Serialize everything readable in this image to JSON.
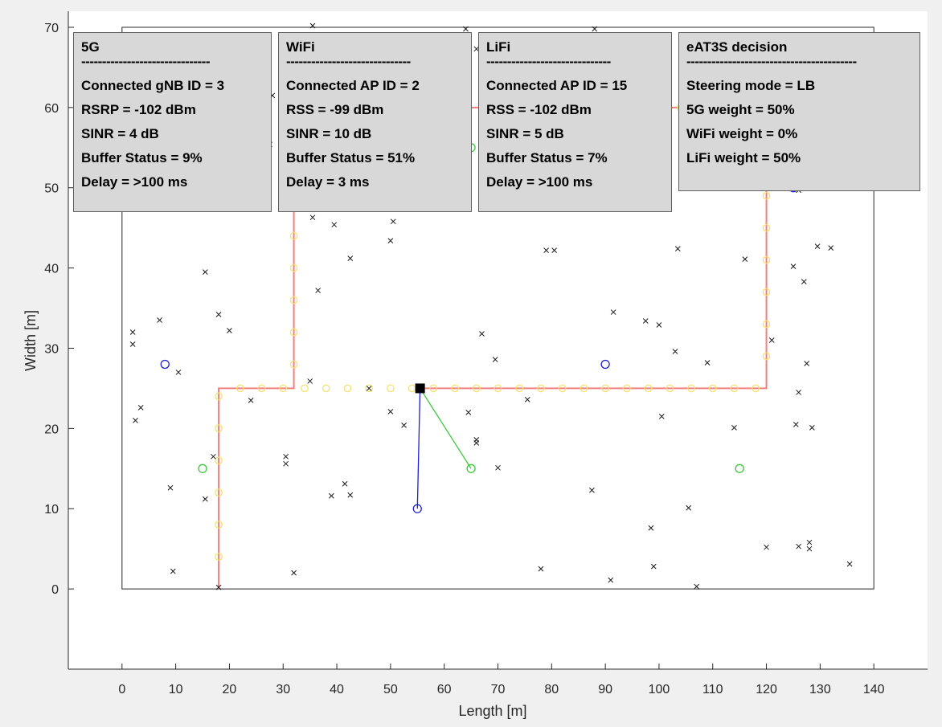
{
  "info_panels": [
    {
      "id": "5g",
      "title": "5G",
      "separator": "-------------------------------",
      "lines": [
        "Connected gNB ID = 3",
        "RSRP = -102 dBm",
        "SINR = 4 dB",
        "Buffer Status = 9%",
        "Delay = >100 ms"
      ]
    },
    {
      "id": "wifi",
      "title": "WiFi",
      "separator": "------------------------------",
      "lines": [
        "Connected AP ID = 2",
        "RSS = -99 dBm",
        "SINR = 10 dB",
        "Buffer Status = 51%",
        "Delay = 3 ms"
      ]
    },
    {
      "id": "lifi",
      "title": "LiFi",
      "separator": "------------------------------",
      "lines": [
        "Connected AP ID = 15",
        "RSS = -102 dBm",
        "SINR = 5 dB",
        "Buffer Status = 7%",
        "Delay = >100 ms"
      ]
    },
    {
      "id": "eat3s",
      "title": "eAT3S decision",
      "separator": "-----------------------------------------",
      "lines": [
        "Steering mode = LB",
        "5G weight = 50%",
        "WiFi weight = 0%",
        "LiFi weight = 50%"
      ]
    }
  ],
  "chart_data": {
    "type": "scatter",
    "title": "",
    "xlabel": "Length [m]",
    "ylabel": "Width [m]",
    "xlim": [
      -10,
      150
    ],
    "ylim": [
      -10,
      72
    ],
    "xticks": [
      0,
      10,
      20,
      30,
      40,
      50,
      60,
      70,
      80,
      90,
      100,
      110,
      120,
      130,
      140
    ],
    "yticks": [
      0,
      10,
      20,
      30,
      40,
      50,
      60,
      70
    ],
    "grid": false,
    "colors": {
      "axes": "#262626",
      "background": "#ffffff",
      "figure": "#f0f0f0",
      "crosses": "#1a1a1a",
      "gnb": "#1f1fd6",
      "wifi_ap": "#3cc83c",
      "lifi_ap": "#f5e26e",
      "path": "#f08080",
      "user": "#000000",
      "link_5g": "#1f1fd6",
      "link_wifi": "#3cc83c"
    },
    "room": {
      "x": [
        0,
        140
      ],
      "y": [
        0,
        70
      ]
    },
    "path": [
      [
        18,
        0
      ],
      [
        18,
        25
      ],
      [
        32,
        25
      ],
      [
        32,
        60
      ],
      [
        120,
        60
      ],
      [
        120,
        25
      ],
      [
        56,
        25
      ]
    ],
    "user_position": [
      55.5,
      25
    ],
    "links": [
      {
        "series": "5G",
        "to": [
          55,
          10
        ]
      },
      {
        "series": "WiFi",
        "to": [
          65,
          15
        ]
      }
    ],
    "series": [
      {
        "marker": "o",
        "values_xy": [
          [
            18,
            58
          ],
          [
            8,
            28
          ],
          [
            55,
            10
          ],
          [
            90,
            28
          ],
          [
            125,
            50
          ]
        ]
      },
      {
        "marker": "o",
        "values_xy": [
          [
            15,
            55
          ],
          [
            65,
            55
          ],
          [
            115,
            55
          ],
          [
            15,
            15
          ],
          [
            65,
            15
          ],
          [
            115,
            15
          ]
        ]
      },
      {
        "marker": "o",
        "values_xy": [
          [
            18,
            4
          ],
          [
            18,
            8
          ],
          [
            18,
            12
          ],
          [
            18,
            16
          ],
          [
            18,
            20
          ],
          [
            18,
            24
          ],
          [
            22,
            25
          ],
          [
            26,
            25
          ],
          [
            30,
            25
          ],
          [
            32,
            28
          ],
          [
            32,
            32
          ],
          [
            32,
            36
          ],
          [
            32,
            40
          ],
          [
            32,
            44
          ],
          [
            32,
            48
          ],
          [
            32,
            52
          ],
          [
            32,
            56
          ],
          [
            32,
            60
          ],
          [
            36,
            60
          ],
          [
            40,
            60
          ],
          [
            44,
            60
          ],
          [
            48,
            60
          ],
          [
            52,
            60
          ],
          [
            56,
            60
          ],
          [
            60,
            60
          ],
          [
            64,
            60
          ],
          [
            68,
            60
          ],
          [
            72,
            60
          ],
          [
            76,
            60
          ],
          [
            80,
            60
          ],
          [
            84,
            60
          ],
          [
            88,
            60
          ],
          [
            92,
            60
          ],
          [
            96,
            60
          ],
          [
            100,
            60
          ],
          [
            104,
            60
          ],
          [
            108,
            60
          ],
          [
            112,
            60
          ],
          [
            116,
            60
          ],
          [
            120,
            57
          ],
          [
            120,
            53
          ],
          [
            120,
            49
          ],
          [
            120,
            45
          ],
          [
            120,
            41
          ],
          [
            120,
            37
          ],
          [
            120,
            33
          ],
          [
            120,
            29
          ],
          [
            118,
            25
          ],
          [
            114,
            25
          ],
          [
            110,
            25
          ],
          [
            106,
            25
          ],
          [
            102,
            25
          ],
          [
            98,
            25
          ],
          [
            94,
            25
          ],
          [
            90,
            25
          ],
          [
            86,
            25
          ],
          [
            82,
            25
          ],
          [
            78,
            25
          ],
          [
            74,
            25
          ],
          [
            70,
            25
          ],
          [
            66,
            25
          ],
          [
            62,
            25
          ],
          [
            58,
            25
          ],
          [
            54,
            25
          ],
          [
            50,
            25
          ],
          [
            46,
            25
          ],
          [
            42,
            25
          ],
          [
            38,
            25
          ],
          [
            34,
            25
          ]
        ]
      },
      {
        "marker": "x",
        "values_xy": [
          [
            1,
            63.5
          ],
          [
            10,
            58.3
          ],
          [
            7,
            48
          ],
          [
            16,
            47.6
          ],
          [
            15.5,
            39.5
          ],
          [
            18,
            34.2
          ],
          [
            20,
            32.2
          ],
          [
            2,
            32
          ],
          [
            2,
            30.5
          ],
          [
            7,
            33.5
          ],
          [
            10.5,
            27
          ],
          [
            3.5,
            22.6
          ],
          [
            2.5,
            21
          ],
          [
            9,
            12.6
          ],
          [
            9.5,
            2.2
          ],
          [
            15.5,
            11.2
          ],
          [
            17,
            16.5
          ],
          [
            18,
            0.2
          ],
          [
            21.5,
            56.3
          ],
          [
            26,
            64.7
          ],
          [
            28,
            61.5
          ],
          [
            27.5,
            55.4
          ],
          [
            30.5,
            64.7
          ],
          [
            35.5,
            70.2
          ],
          [
            36.5,
            66.4
          ],
          [
            35.5,
            46.3
          ],
          [
            39.5,
            45.4
          ],
          [
            42.5,
            41.2
          ],
          [
            36.5,
            37.2
          ],
          [
            35,
            25.9
          ],
          [
            24,
            23.5
          ],
          [
            30.5,
            16.5
          ],
          [
            30.5,
            15.6
          ],
          [
            32,
            2
          ],
          [
            39,
            11.6
          ],
          [
            41.5,
            13.1
          ],
          [
            42.5,
            11.7
          ],
          [
            46,
            25
          ],
          [
            49,
            61.3
          ],
          [
            50,
            64.7
          ],
          [
            50.5,
            45.8
          ],
          [
            50,
            43.4
          ],
          [
            50,
            22.1
          ],
          [
            52.5,
            20.4
          ],
          [
            55.5,
            67.1
          ],
          [
            57,
            66.8
          ],
          [
            57,
            66.6
          ],
          [
            56.5,
            64.6
          ],
          [
            59,
            62.3
          ],
          [
            61,
            66.9
          ],
          [
            64,
            69.8
          ],
          [
            66,
            67.3
          ],
          [
            64.5,
            22
          ],
          [
            66,
            18.6
          ],
          [
            66,
            18.2
          ],
          [
            67,
            31.8
          ],
          [
            69.5,
            28.6
          ],
          [
            70,
            15.1
          ],
          [
            74.5,
            50.4
          ],
          [
            75.5,
            23.6
          ],
          [
            79,
            42.2
          ],
          [
            80.5,
            42.2
          ],
          [
            78,
            2.5
          ],
          [
            88,
            69.8
          ],
          [
            88.5,
            68.3
          ],
          [
            87.5,
            67
          ],
          [
            91.5,
            34.5
          ],
          [
            87.5,
            12.3
          ],
          [
            91,
            1.1
          ],
          [
            95,
            60.7
          ],
          [
            97.5,
            33.4
          ],
          [
            100,
            32.9
          ],
          [
            100.5,
            21.5
          ],
          [
            103,
            29.6
          ],
          [
            103.5,
            42.4
          ],
          [
            98.5,
            7.6
          ],
          [
            99,
            2.8
          ],
          [
            105.5,
            10.1
          ],
          [
            107,
            0.3
          ],
          [
            109,
            28.2
          ],
          [
            114,
            20.1
          ],
          [
            116,
            68
          ],
          [
            116,
            67.7
          ],
          [
            116.5,
            55.5
          ],
          [
            116,
            41.1
          ],
          [
            122.5,
            66
          ],
          [
            121,
            31
          ],
          [
            125,
            40.2
          ],
          [
            127,
            38.3
          ],
          [
            126,
            49.7
          ],
          [
            127.5,
            28.1
          ],
          [
            126,
            24.5
          ],
          [
            125.5,
            20.5
          ],
          [
            128.5,
            20.1
          ],
          [
            129.5,
            42.7
          ],
          [
            132,
            42.5
          ],
          [
            136,
            55.9
          ],
          [
            120,
            5.2
          ],
          [
            126,
            5.3
          ],
          [
            128,
            5.8
          ],
          [
            128,
            5
          ],
          [
            135.5,
            3.1
          ]
        ]
      }
    ]
  }
}
